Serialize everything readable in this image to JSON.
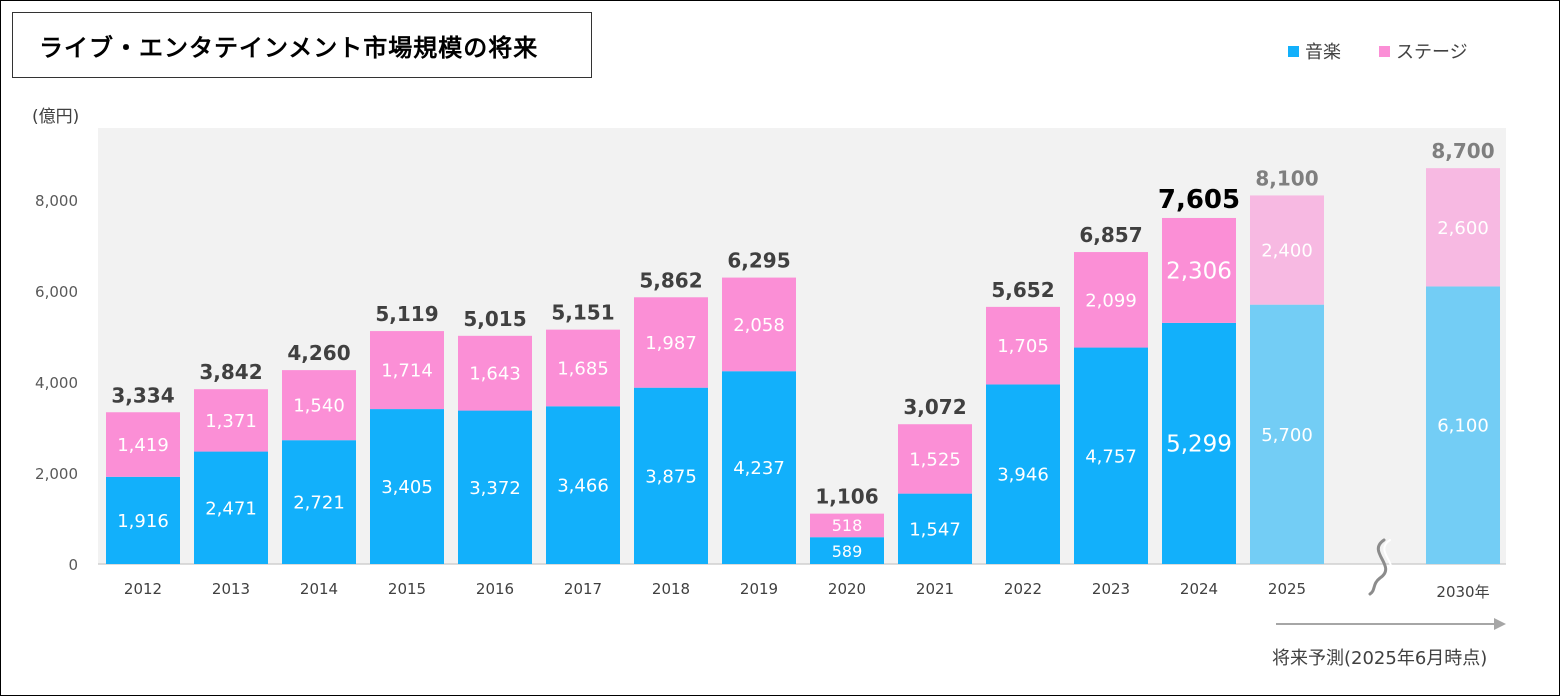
{
  "title": "ライブ・エンタテインメント市場規模の将来",
  "unit_label": "(億円)",
  "legend": [
    {
      "label": "音楽",
      "color": "#12b0fb"
    },
    {
      "label": "ステージ",
      "color": "#fb8fd6"
    }
  ],
  "forecast_note": "将来予測(2025年6月時点)",
  "colors": {
    "music": "#12b0fb",
    "stage": "#fb8fd6",
    "music_forecast": "#73cdf5",
    "stage_forecast": "#f7b9e2",
    "plot_bg": "#f2f2f2"
  },
  "chart_data": {
    "type": "bar",
    "stacked": true,
    "categories": [
      "2012",
      "2013",
      "2014",
      "2015",
      "2016",
      "2017",
      "2018",
      "2019",
      "2020",
      "2021",
      "2022",
      "2023",
      "2024",
      "2025",
      "2030年"
    ],
    "series": [
      {
        "name": "音楽",
        "values": [
          1916,
          2471,
          2721,
          3405,
          3372,
          3466,
          3875,
          4237,
          589,
          1547,
          3946,
          4757,
          5299,
          5700,
          6100
        ]
      },
      {
        "name": "ステージ",
        "values": [
          1419,
          1371,
          1540,
          1714,
          1643,
          1685,
          1987,
          2058,
          518,
          1525,
          1705,
          2099,
          2306,
          2400,
          2600
        ]
      }
    ],
    "value_labels_music": [
      "1,916",
      "2,471",
      "2,721",
      "3,405",
      "3,372",
      "3,466",
      "3,875",
      "4,237",
      "589",
      "1,547",
      "3,946",
      "4,757",
      "5,299",
      "5,700",
      "6,100"
    ],
    "value_labels_stage": [
      "1,419",
      "1,371",
      "1,540",
      "1,714",
      "1,643",
      "1,685",
      "1,987",
      "2,058",
      "518",
      "1,525",
      "1,705",
      "2,099",
      "2,306",
      "2,400",
      "2,600"
    ],
    "totals": [
      "3,334",
      "3,842",
      "4,260",
      "5,119",
      "5,015",
      "5,151",
      "5,862",
      "6,295",
      "1,106",
      "3,072",
      "5,652",
      "6,857",
      "7,605",
      "8,100",
      "8,700"
    ],
    "forecast": [
      false,
      false,
      false,
      false,
      false,
      false,
      false,
      false,
      false,
      false,
      false,
      false,
      false,
      true,
      true
    ],
    "highlight_index": 12,
    "y_ticks": [
      "0",
      "2,000",
      "4,000",
      "6,000",
      "8,000"
    ],
    "y_tick_values": [
      0,
      2000,
      4000,
      6000,
      8000
    ],
    "ylim": [
      0,
      9500
    ],
    "grid": false,
    "axis_break_between": [
      "2025",
      "2030年"
    ],
    "legend_position": "top-right"
  }
}
